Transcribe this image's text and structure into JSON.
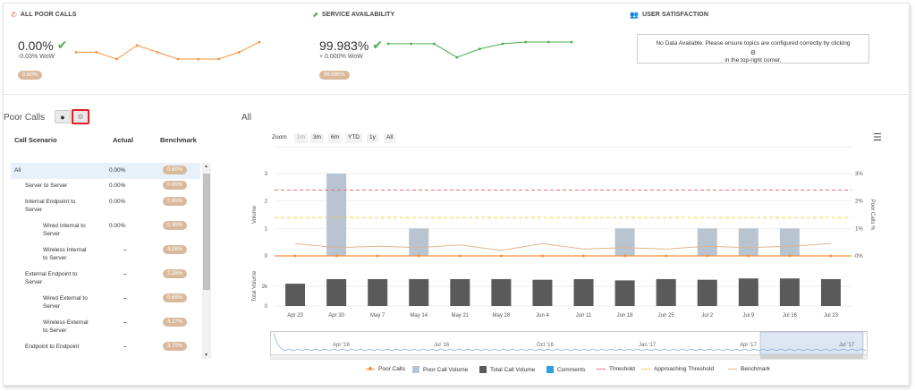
{
  "kpis": {
    "poor_calls": {
      "title": "ALL POOR CALLS",
      "value": "0.00%",
      "wow": "-0.03% WoW",
      "pill": "0.60%",
      "sparkline": [
        0.4,
        0.4,
        0.0,
        0.8,
        0.4,
        0.0,
        0.0,
        0.0,
        0.4,
        1.0
      ]
    },
    "service_availability": {
      "title": "SERVICE AVAILABILITY",
      "value": "99.983%",
      "wow": "+ 0.000% WoW",
      "pill": "99.990%",
      "sparkline": [
        0.9,
        0.9,
        0.9,
        0.1,
        0.6,
        0.9,
        1.0,
        1.0,
        1.0
      ]
    },
    "user_satisfaction": {
      "title": "USER SATISFACTION",
      "no_data_line1": "No Data Available. Please ensure topics are configured correctly by clicking",
      "no_data_line2": "in the top-right corner."
    }
  },
  "panel": {
    "title": "Poor Calls",
    "headers": {
      "scenario": "Call Scenario",
      "actual": "Actual",
      "benchmark": "Benchmark"
    },
    "rows": [
      {
        "line1": "All",
        "line2": "",
        "actual": "0.00%",
        "benchmark": "0.60%"
      },
      {
        "line1": "Server to Server",
        "line2": "",
        "actual": "0.00%",
        "benchmark": "0.00%"
      },
      {
        "line1": "Internal Endpoint to",
        "line2": "Server",
        "actual": "0.00%",
        "benchmark": "0.80%"
      },
      {
        "line1": "Wired Internal to",
        "line2": "Server",
        "actual": "0.00%",
        "benchmark": "0.40%"
      },
      {
        "line1": "Wireless Internal",
        "line2": "to Server",
        "actual": "–",
        "benchmark": "4.08%"
      },
      {
        "line1": "External Endpoint to",
        "line2": "Server",
        "actual": "–",
        "benchmark": "2.28%"
      },
      {
        "line1": "Wired External to",
        "line2": "Server",
        "actual": "–",
        "benchmark": "0.68%"
      },
      {
        "line1": "Wireless External",
        "line2": "to Server",
        "actual": "–",
        "benchmark": "4.27%"
      },
      {
        "line1": "Endpoint to Endpoint",
        "line2": "",
        "actual": "–",
        "benchmark": "3.70%"
      }
    ]
  },
  "chart_header": {
    "title": "All",
    "zoom_label": "Zoom",
    "zoom_options": [
      "1m",
      "3m",
      "6m",
      "YTD",
      "1y",
      "All"
    ]
  },
  "chart_data": {
    "type": "bar",
    "categories": [
      "Apr 23",
      "Apr 30",
      "May 7",
      "May 14",
      "May 21",
      "May 28",
      "Jun 4",
      "Jun 11",
      "Jun 18",
      "Jun 25",
      "Jul 2",
      "Jul 9",
      "Jul 16",
      "Jul 23"
    ],
    "top_ylabel": "Volume",
    "right_ylabel": "Poor Calls %",
    "bottom_ylabel": "Total Volume",
    "top_yticks": [
      "0",
      "1",
      "2",
      "3"
    ],
    "right_yticks": [
      "0%",
      "1%",
      "2%",
      "3%"
    ],
    "bottom_yticks": [
      "0",
      "2k"
    ],
    "top_ylim": [
      0,
      3
    ],
    "bottom_ylim": [
      0,
      3000
    ],
    "series": [
      {
        "name": "Poor Call Volume",
        "values": [
          0,
          3,
          0,
          1,
          0,
          0,
          0,
          0,
          1,
          0,
          1,
          1,
          1,
          0
        ]
      },
      {
        "name": "Total Call Volume",
        "values": [
          1700,
          2050,
          2050,
          2050,
          2050,
          2050,
          2000,
          2050,
          1950,
          2050,
          2000,
          2100,
          2100,
          2050
        ]
      },
      {
        "name": "Poor Calls",
        "values": [
          0,
          0,
          0,
          0,
          0,
          0,
          0,
          0,
          0,
          0,
          0,
          0,
          0,
          0
        ]
      },
      {
        "name": "Benchmark",
        "values": [
          0.45,
          0.3,
          0.35,
          0.3,
          0.4,
          0.2,
          0.45,
          0.25,
          0.3,
          0.25,
          0.35,
          0.3,
          0.35,
          0.45
        ]
      }
    ],
    "threshold": 2.4,
    "approaching_threshold": 1.4,
    "navigator_labels": [
      "Apr '16",
      "Jul '16",
      "Oct '16",
      "Jan '17",
      "Apr '17",
      "Jul '17"
    ],
    "legend": [
      "Poor Calls",
      "Poor Call Volume",
      "Total Call Volume",
      "Comments",
      "Threshold",
      "Approaching Threshold",
      "Benchmark"
    ]
  },
  "colors": {
    "accent_green": "#4caf50",
    "accent_orange": "#f5923e",
    "pill": "#d9b99b",
    "bar_dark": "#5a5a5a",
    "bar_light": "#b8c4d0",
    "threshold": "#f06a6a",
    "approaching": "#f2d03a",
    "benchmark": "#e0b590",
    "comments": "#2aa3dc"
  }
}
